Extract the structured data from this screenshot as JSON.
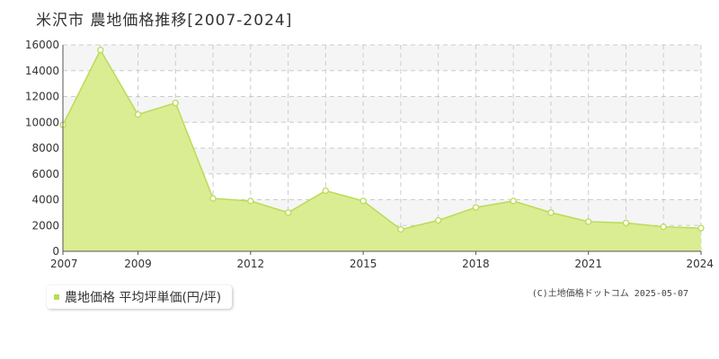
{
  "title": "米沢市 農地価格推移[2007-2024]",
  "legend": {
    "label": "農地価格 平均坪単価(円/坪)"
  },
  "copyright": "(C)土地価格ドットコム 2025-05-07",
  "colors": {
    "fill": "#d8ec8c",
    "line": "#b9dc57",
    "point": "#ffffff",
    "grid": "#cccccc",
    "band": "#f5f5f5",
    "swatch": "#b9dc57"
  },
  "chart_data": {
    "type": "area",
    "title": "米沢市 農地価格推移[2007-2024]",
    "xlabel": "",
    "ylabel": "",
    "xlim": [
      2007,
      2024
    ],
    "ylim": [
      0,
      16000
    ],
    "y_ticks": [
      0,
      2000,
      4000,
      6000,
      8000,
      10000,
      12000,
      14000,
      16000
    ],
    "y_tick_labels": [
      "0",
      "2000",
      "4000",
      "6000",
      "8000",
      "10000",
      "12000",
      "14000",
      "16000"
    ],
    "x_tick_labels": [
      "2007",
      "2009",
      "2012",
      "2015",
      "2018",
      "2021",
      "2024"
    ],
    "grid": true,
    "legend_position": "bottom-left",
    "series": [
      {
        "name": "農地価格 平均坪単価(円/坪)",
        "x": [
          2007,
          2008,
          2009,
          2010,
          2011,
          2012,
          2013,
          2014,
          2015,
          2016,
          2017,
          2018,
          2019,
          2020,
          2021,
          2022,
          2023,
          2024
        ],
        "values": [
          9800,
          15600,
          10600,
          11500,
          4100,
          3900,
          3000,
          4700,
          3900,
          1700,
          2400,
          3400,
          3900,
          3000,
          2300,
          2200,
          1900,
          1800
        ]
      }
    ]
  }
}
